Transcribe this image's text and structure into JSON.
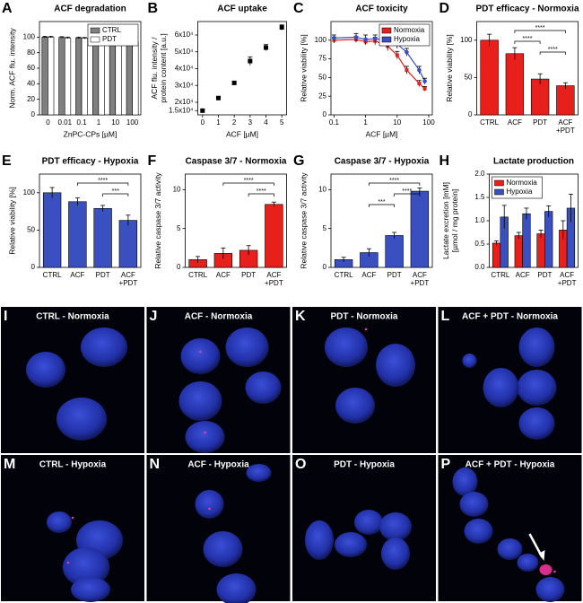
{
  "chart_data": [
    {
      "panel": "A",
      "type": "bar",
      "title": "ACF degradation",
      "xlabel": "ZnPC-CPs [µM]",
      "ylabel": [
        "Norm. ACF flu. intensity"
      ],
      "categories": [
        "0",
        "0.01",
        "0.1",
        "1",
        "10",
        "100"
      ],
      "series": [
        {
          "name": "CTRL",
          "color": "#808080",
          "values": [
            100,
            99.5,
            99,
            98.5,
            97,
            96
          ],
          "errors": [
            1,
            1,
            1,
            1,
            1,
            1
          ]
        },
        {
          "name": "PDT",
          "color": "#ffffff",
          "values": [
            100,
            99,
            98.5,
            97.5,
            96.5,
            94
          ],
          "errors": [
            1,
            1,
            1,
            1,
            1,
            1
          ]
        }
      ],
      "ylim": [
        0,
        120
      ],
      "yticks": [
        0,
        20,
        40,
        60,
        80,
        100
      ],
      "legend": "top-right"
    },
    {
      "panel": "B",
      "type": "scatter",
      "title": "ACF uptake",
      "xlabel": "ACF [µM]",
      "ylabel": [
        "ACF flu. intensity /",
        "protein content [a.u.]"
      ],
      "x": [
        0,
        1,
        2,
        3,
        4,
        5
      ],
      "series": [
        {
          "name": "ACF",
          "color": "#000000",
          "values": [
            15000,
            22500,
            31500,
            44500,
            52500,
            64500
          ],
          "errors": [
            400,
            500,
            800,
            2500,
            1800,
            1500
          ]
        }
      ],
      "xlim": [
        -0.3,
        5.3
      ],
      "xticks": [
        0,
        1,
        2,
        3,
        4,
        5
      ],
      "ylim": [
        12500,
        68000
      ],
      "yticks": [
        {
          "value": 15000,
          "label": "1.5x10⁴"
        },
        {
          "value": 20000,
          "label": "2x10⁴"
        },
        {
          "value": 30000,
          "label": "3x10⁴"
        },
        {
          "value": 40000,
          "label": "4x10⁴"
        },
        {
          "value": 50000,
          "label": "5x10⁴"
        },
        {
          "value": 60000,
          "label": "6x10⁴"
        }
      ]
    },
    {
      "panel": "C",
      "type": "line",
      "title": "ACF toxicity",
      "xlabel": "ACF [µM]",
      "ylabel": [
        "Relative viability [%]"
      ],
      "x": [
        0.1,
        0.5,
        1,
        2,
        5,
        10,
        20,
        50,
        75
      ],
      "series": [
        {
          "name": "Normoxia",
          "color": "#e8201c",
          "values": [
            100,
            101,
            98,
            99,
            92,
            80,
            60,
            42,
            35
          ],
          "errors": [
            4,
            4,
            4,
            5,
            6,
            5,
            5,
            4,
            3
          ]
        },
        {
          "name": "Hypoxia",
          "color": "#3a4fc0",
          "values": [
            103,
            104,
            101,
            102,
            100,
            95,
            84,
            60,
            45
          ],
          "errors": [
            4,
            5,
            6,
            5,
            10,
            6,
            5,
            5,
            4
          ]
        }
      ],
      "log_x": true,
      "xlim": [
        0.08,
        130
      ],
      "xticks": [
        0.1,
        1,
        10,
        100
      ],
      "ylim": [
        0,
        125
      ],
      "yticks": [
        0,
        25,
        50,
        75,
        100
      ],
      "legend": "top-right"
    },
    {
      "panel": "D",
      "type": "bar",
      "title": "PDT efficacy - Normoxia",
      "ylabel": [
        "Relative viability [%]"
      ],
      "categories": [
        "CTRL",
        "ACF",
        "PDT",
        "ACF\n+PDT"
      ],
      "series": [
        {
          "name": "Normoxia",
          "color": "#e8201c",
          "values": [
            100,
            82,
            48,
            39
          ],
          "errors": [
            8,
            8,
            7,
            4
          ]
        }
      ],
      "ylim": [
        0,
        125
      ],
      "yticks": [
        0,
        50,
        100
      ],
      "significance": [
        {
          "between": [
            1,
            3
          ],
          "label": "****"
        },
        {
          "between": [
            1,
            2
          ],
          "label": "****"
        },
        {
          "between": [
            2,
            3
          ],
          "label": "****"
        }
      ]
    },
    {
      "panel": "E",
      "type": "bar",
      "title": "PDT efficacy - Hypoxia",
      "ylabel": [
        "Relative viability [%]"
      ],
      "categories": [
        "CTRL",
        "ACF",
        "PDT",
        "ACF\n+PDT"
      ],
      "series": [
        {
          "name": "Hypoxia",
          "color": "#3a4fc0",
          "values": [
            100,
            88,
            79,
            63
          ],
          "errors": [
            7,
            5,
            4,
            7
          ]
        }
      ],
      "ylim": [
        0,
        125
      ],
      "yticks": [
        0,
        50,
        100
      ],
      "significance": [
        {
          "between": [
            1,
            3
          ],
          "label": "****"
        },
        {
          "between": [
            2,
            3
          ],
          "label": "***"
        }
      ]
    },
    {
      "panel": "F",
      "type": "bar",
      "title": "Caspase 3/7 - Normoxia",
      "ylabel": [
        "Relative caspase 3/7 activity"
      ],
      "categories": [
        "CTRL",
        "ACF",
        "PDT",
        "ACF\n+PDT"
      ],
      "series": [
        {
          "name": "Normoxia",
          "color": "#e8201c",
          "values": [
            1.0,
            1.8,
            2.2,
            8.1
          ],
          "errors": [
            0.4,
            0.7,
            0.6,
            0.3
          ]
        }
      ],
      "ylim": [
        0,
        12
      ],
      "yticks": [
        0,
        5,
        10
      ],
      "significance": [
        {
          "between": [
            1,
            3
          ],
          "label": "****"
        },
        {
          "between": [
            2,
            3
          ],
          "label": "****"
        }
      ]
    },
    {
      "panel": "G",
      "type": "bar",
      "title": "Caspase 3/7 - Hypoxia",
      "ylabel": [
        "Relative caspase 3/7 activity"
      ],
      "categories": [
        "CTRL",
        "ACF",
        "PDT",
        "ACF\n+PDT"
      ],
      "series": [
        {
          "name": "Hypoxia",
          "color": "#3a4fc0",
          "values": [
            1.0,
            1.9,
            4.1,
            9.8
          ],
          "errors": [
            0.3,
            0.5,
            0.4,
            0.4
          ]
        }
      ],
      "ylim": [
        0,
        12
      ],
      "yticks": [
        0,
        5,
        10
      ],
      "significance": [
        {
          "between": [
            1,
            3
          ],
          "label": "****"
        },
        {
          "between": [
            2,
            3
          ],
          "label": "****"
        },
        {
          "between": [
            1,
            2
          ],
          "label": "***"
        }
      ]
    },
    {
      "panel": "H",
      "type": "bar",
      "title": "Lactate production",
      "ylabel": [
        "Lactate excretion [mM]",
        "[µmol / mg protein]"
      ],
      "categories": [
        "CTRL",
        "ACF",
        "PDT",
        "ACF\n+PDT"
      ],
      "series": [
        {
          "name": "Normoxia",
          "color": "#e8201c",
          "values": [
            0.52,
            0.68,
            0.72,
            0.8
          ],
          "errors": [
            0.05,
            0.07,
            0.08,
            0.2
          ]
        },
        {
          "name": "Hypoxia",
          "color": "#3a4fc0",
          "values": [
            1.08,
            1.15,
            1.2,
            1.27
          ],
          "errors": [
            0.25,
            0.12,
            0.12,
            0.3
          ]
        }
      ],
      "ylim": [
        0,
        2.0
      ],
      "yticks": [
        {
          "value": 0,
          "label": "0.0"
        },
        0.5,
        {
          "value": 1,
          "label": "1.0"
        },
        1.5,
        {
          "value": 2,
          "label": "2.0"
        }
      ],
      "legend": "top-left"
    }
  ],
  "images": [
    {
      "letter": "I",
      "title": "CTRL - Normoxia"
    },
    {
      "letter": "J",
      "title": "ACF - Normoxia"
    },
    {
      "letter": "K",
      "title": "PDT - Normoxia"
    },
    {
      "letter": "L",
      "title": "ACF + PDT - Normoxia"
    },
    {
      "letter": "M",
      "title": "CTRL - Hypoxia"
    },
    {
      "letter": "N",
      "title": "ACF - Hypoxia"
    },
    {
      "letter": "O",
      "title": "PDT - Hypoxia"
    },
    {
      "letter": "P",
      "title": "ACF + PDT - Hypoxia"
    }
  ]
}
